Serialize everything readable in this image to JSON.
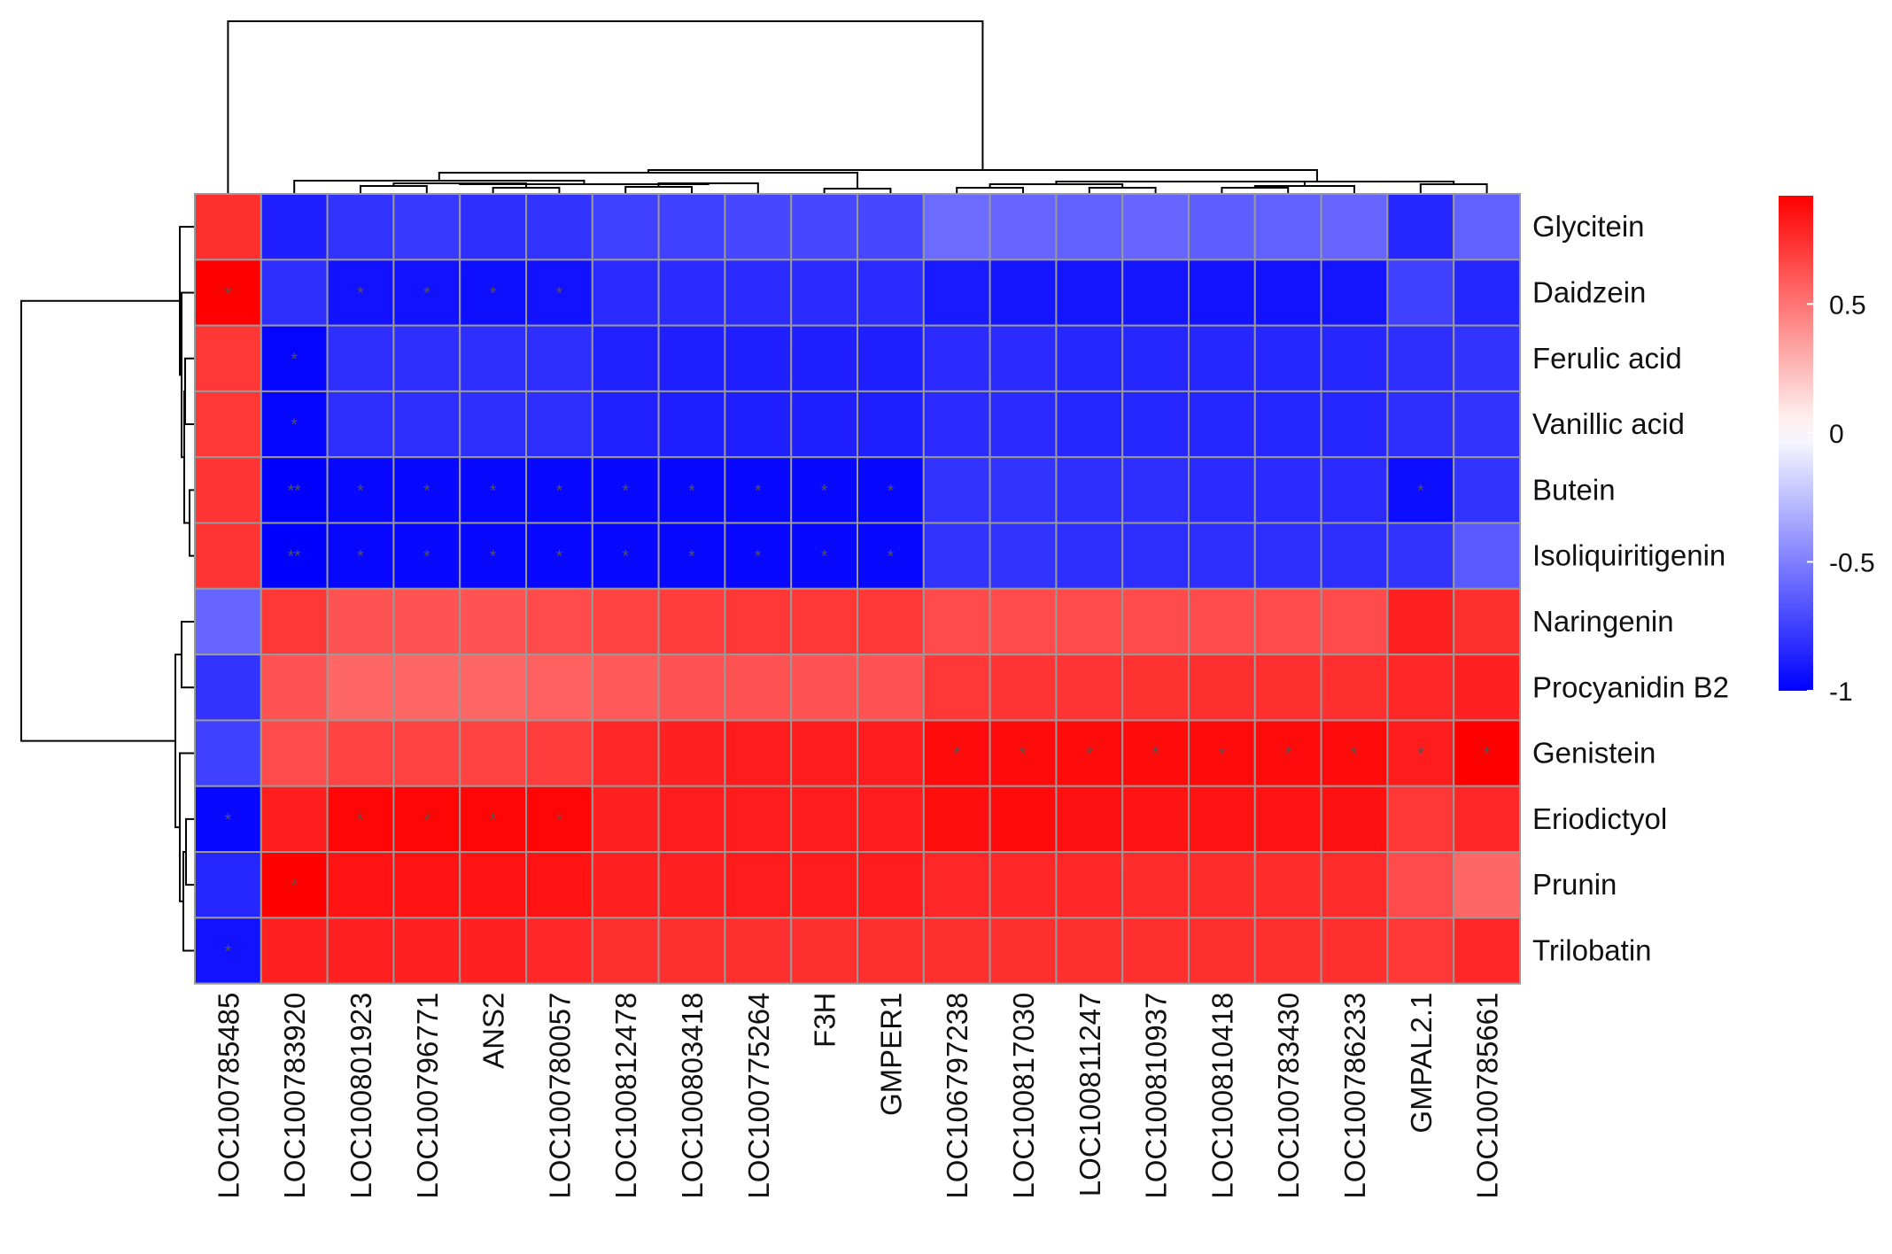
{
  "chart_data": {
    "type": "heatmap",
    "title": "",
    "xlabel": "",
    "ylabel": "",
    "rows": [
      "Glycitein",
      "Daidzein",
      "Ferulic acid",
      "Vanillic acid",
      "Butein",
      "Isoliquiritigenin",
      "Naringenin",
      "Procyanidin B2",
      "Genistein",
      "Eriodictyol",
      "Prunin",
      "Trilobatin"
    ],
    "columns": [
      "LOC100785485",
      "LOC100783920",
      "LOC100801923",
      "LOC100796771",
      "ANS2",
      "LOC100780057",
      "LOC100812478",
      "LOC100803418",
      "LOC100775264",
      "F3H",
      "GMPER1",
      "LOC106797238",
      "LOC100817030",
      "LOC100811247",
      "LOC100810937",
      "LOC100810418",
      "LOC100783430",
      "LOC100786233",
      "GMPAL2.1",
      "LOC100785661"
    ],
    "values": [
      [
        0.75,
        -0.88,
        -0.8,
        -0.78,
        -0.82,
        -0.8,
        -0.75,
        -0.75,
        -0.72,
        -0.72,
        -0.72,
        -0.58,
        -0.6,
        -0.62,
        -0.6,
        -0.63,
        -0.62,
        -0.6,
        -0.85,
        -0.62
      ],
      [
        0.92,
        -0.82,
        -0.93,
        -0.93,
        -0.94,
        -0.93,
        -0.83,
        -0.83,
        -0.83,
        -0.83,
        -0.83,
        -0.9,
        -0.92,
        -0.92,
        -0.92,
        -0.93,
        -0.93,
        -0.92,
        -0.75,
        -0.85
      ],
      [
        0.72,
        -0.98,
        -0.82,
        -0.82,
        -0.82,
        -0.82,
        -0.87,
        -0.88,
        -0.88,
        -0.88,
        -0.88,
        -0.83,
        -0.83,
        -0.85,
        -0.85,
        -0.85,
        -0.85,
        -0.85,
        -0.82,
        -0.8
      ],
      [
        0.72,
        -0.98,
        -0.82,
        -0.82,
        -0.82,
        -0.82,
        -0.87,
        -0.88,
        -0.88,
        -0.88,
        -0.88,
        -0.83,
        -0.83,
        -0.85,
        -0.85,
        -0.85,
        -0.85,
        -0.85,
        -0.82,
        -0.8
      ],
      [
        0.73,
        -1.0,
        -0.97,
        -0.97,
        -0.97,
        -0.97,
        -0.97,
        -0.97,
        -0.97,
        -0.97,
        -0.97,
        -0.8,
        -0.8,
        -0.82,
        -0.82,
        -0.83,
        -0.83,
        -0.83,
        -0.95,
        -0.8
      ],
      [
        0.73,
        -1.0,
        -0.97,
        -0.97,
        -0.97,
        -0.97,
        -0.97,
        -0.97,
        -0.97,
        -0.97,
        -0.97,
        -0.8,
        -0.8,
        -0.82,
        -0.82,
        -0.82,
        -0.82,
        -0.82,
        -0.8,
        -0.65
      ],
      [
        -0.6,
        0.72,
        0.62,
        0.62,
        0.62,
        0.65,
        0.68,
        0.7,
        0.72,
        0.72,
        0.72,
        0.65,
        0.65,
        0.65,
        0.65,
        0.65,
        0.65,
        0.65,
        0.8,
        0.75
      ],
      [
        -0.8,
        0.62,
        0.55,
        0.55,
        0.55,
        0.57,
        0.6,
        0.62,
        0.62,
        0.62,
        0.62,
        0.72,
        0.73,
        0.73,
        0.74,
        0.75,
        0.75,
        0.75,
        0.78,
        0.8
      ],
      [
        -0.75,
        0.65,
        0.68,
        0.68,
        0.68,
        0.7,
        0.78,
        0.8,
        0.82,
        0.82,
        0.82,
        0.88,
        0.88,
        0.88,
        0.88,
        0.88,
        0.88,
        0.88,
        0.82,
        0.92
      ],
      [
        -0.97,
        0.82,
        0.9,
        0.9,
        0.9,
        0.9,
        0.8,
        0.82,
        0.82,
        0.82,
        0.82,
        0.87,
        0.88,
        0.86,
        0.85,
        0.85,
        0.85,
        0.86,
        0.72,
        0.78
      ],
      [
        -0.85,
        0.93,
        0.85,
        0.85,
        0.85,
        0.85,
        0.8,
        0.8,
        0.82,
        0.82,
        0.82,
        0.78,
        0.78,
        0.78,
        0.76,
        0.76,
        0.76,
        0.76,
        0.65,
        0.55
      ],
      [
        -0.93,
        0.8,
        0.8,
        0.8,
        0.8,
        0.78,
        0.75,
        0.75,
        0.75,
        0.75,
        0.75,
        0.75,
        0.75,
        0.75,
        0.75,
        0.75,
        0.75,
        0.75,
        0.72,
        0.78
      ]
    ],
    "significance": [
      [
        "",
        "",
        "",
        "",
        "",
        "",
        "",
        "",
        "",
        "",
        "",
        "",
        "",
        "",
        "",
        "",
        "",
        "",
        "",
        ""
      ],
      [
        "*",
        "",
        "*",
        "*",
        "*",
        "*",
        "",
        "",
        "",
        "",
        "",
        "",
        "",
        "",
        "",
        "",
        "",
        "",
        "",
        ""
      ],
      [
        "",
        "*",
        "",
        "",
        "",
        "",
        "",
        "",
        "",
        "",
        "",
        "",
        "",
        "",
        "",
        "",
        "",
        "",
        "",
        ""
      ],
      [
        "",
        "*",
        "",
        "",
        "",
        "",
        "",
        "",
        "",
        "",
        "",
        "",
        "",
        "",
        "",
        "",
        "",
        "",
        "",
        ""
      ],
      [
        "",
        "**",
        "*",
        "*",
        "*",
        "*",
        "*",
        "*",
        "*",
        "*",
        "*",
        "",
        "",
        "",
        "",
        "",
        "",
        "",
        "*",
        ""
      ],
      [
        "",
        "**",
        "*",
        "*",
        "*",
        "*",
        "*",
        "*",
        "*",
        "*",
        "*",
        "",
        "",
        "",
        "",
        "",
        "",
        "",
        "",
        ""
      ],
      [
        "",
        "",
        "",
        "",
        "",
        "",
        "",
        "",
        "",
        "",
        "",
        "",
        "",
        "",
        "",
        "",
        "",
        "",
        "",
        ""
      ],
      [
        "",
        "",
        "",
        "",
        "",
        "",
        "",
        "",
        "",
        "",
        "",
        "",
        "",
        "",
        "",
        "",
        "",
        "",
        "",
        ""
      ],
      [
        "",
        "",
        "",
        "",
        "",
        "",
        "",
        "",
        "",
        "",
        "",
        "*",
        "*",
        "*",
        "*",
        "*",
        "*",
        "*",
        "*",
        "*"
      ],
      [
        "*",
        "",
        "*",
        "*",
        "*",
        "*",
        "",
        "",
        "",
        "",
        "",
        "",
        "",
        "",
        "",
        "",
        "",
        "",
        "",
        ""
      ],
      [
        "",
        "*",
        "",
        "",
        "",
        "",
        "",
        "",
        "",
        "",
        "",
        "",
        "",
        "",
        "",
        "",
        "",
        "",
        "",
        ""
      ],
      [
        "*",
        "",
        "",
        "",
        "",
        "",
        "",
        "",
        "",
        "",
        "",
        "",
        "",
        "",
        "",
        "",
        "",
        "",
        "",
        ""
      ]
    ],
    "color_scale": {
      "min": -1,
      "max": 0.92,
      "low_color": "#0000ff",
      "mid_color": "#ffffff",
      "high_color": "#ff0000",
      "ticks": [
        {
          "value": 0.5,
          "label": "0.5"
        },
        {
          "value": 0,
          "label": "0"
        },
        {
          "value": -0.5,
          "label": "-0.5"
        },
        {
          "value": -1,
          "label": "-1"
        }
      ]
    },
    "legend_position": "right",
    "grid": true,
    "grid_color": "#999999",
    "row_dendrogram": "left",
    "column_dendrogram": "top"
  }
}
